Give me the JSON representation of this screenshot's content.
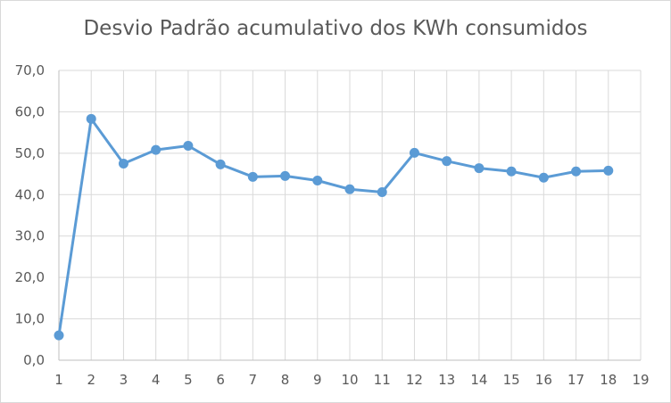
{
  "chart_data": {
    "type": "line",
    "title": "Desvio Padrão acumulativo dos KWh consumidos",
    "xlabel": "",
    "ylabel": "",
    "x_ticks": [
      "1",
      "2",
      "3",
      "4",
      "5",
      "6",
      "7",
      "8",
      "9",
      "10",
      "11",
      "12",
      "13",
      "14",
      "15",
      "16",
      "17",
      "18",
      "19"
    ],
    "y_ticks": [
      "0,0",
      "10,0",
      "20,0",
      "30,0",
      "40,0",
      "50,0",
      "60,0",
      "70,0"
    ],
    "xlim": [
      1,
      19
    ],
    "ylim": [
      0,
      70
    ],
    "grid": true,
    "series": [
      {
        "color": "#5b9bd5",
        "x": [
          1,
          2,
          3,
          4,
          5,
          6,
          7,
          8,
          9,
          10,
          11,
          12,
          13,
          14,
          15,
          16,
          17,
          18
        ],
        "values": [
          6.0,
          58.3,
          47.5,
          50.8,
          51.8,
          47.3,
          44.3,
          44.5,
          43.4,
          41.3,
          40.6,
          50.1,
          48.1,
          46.4,
          45.6,
          44.1,
          45.6,
          45.8
        ]
      }
    ]
  }
}
